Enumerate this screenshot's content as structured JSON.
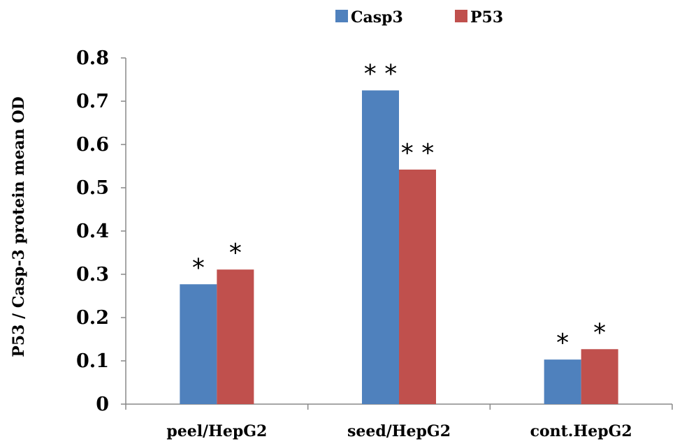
{
  "chart_data": {
    "type": "bar",
    "title": "",
    "xlabel": "",
    "ylabel": "P53 / Casp-3  protein mean OD",
    "categories": [
      "peel/HepG2",
      "seed/HepG2",
      "cont.HepG2"
    ],
    "series": [
      {
        "name": "Casp3",
        "color": "#4F81BD",
        "values": [
          0.277,
          0.725,
          0.103
        ],
        "annotations": [
          "*",
          "**",
          "*"
        ]
      },
      {
        "name": "P53",
        "color": "#C0504D",
        "values": [
          0.311,
          0.542,
          0.127
        ],
        "annotations": [
          "*",
          "**",
          "*"
        ]
      }
    ],
    "ylim": [
      0,
      0.8
    ],
    "yticks": [
      "0",
      "0.1",
      "0.2",
      "0.3",
      "0.4",
      "0.5",
      "0.6",
      "0.7",
      "0.8"
    ],
    "grid": false,
    "legend_position": "top-center"
  }
}
